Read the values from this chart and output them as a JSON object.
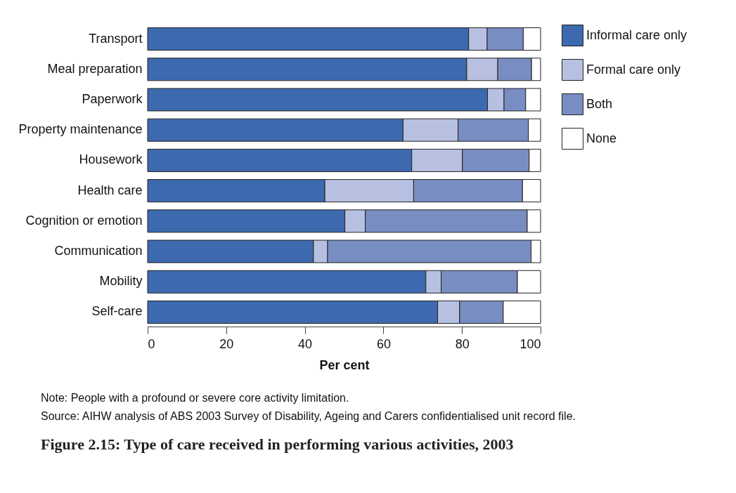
{
  "chart_data": {
    "type": "bar",
    "orientation": "horizontal",
    "stacked": true,
    "title": "Figure 2.15: Type of care received in performing various activities, 2003",
    "xlabel": "Per cent",
    "annotations": [
      "Note: People with a profound or severe core activity limitation.",
      "Source: AIHW analysis of ABS 2003 Survey of Disability, Ageing and Carers confidentialised unit record file."
    ],
    "categories": [
      "Transport",
      "Meal preparation",
      "Paperwork",
      "Property maintenance",
      "Housework",
      "Health care",
      "Cognition or emotion",
      "Communication",
      "Mobility",
      "Self-care"
    ],
    "series": [
      {
        "name": "Informal care only",
        "color": "#3d6aae",
        "values": [
          81.7,
          81.2,
          86.5,
          65.0,
          67.2,
          45.1,
          50.2,
          42.2,
          70.8,
          73.8
        ]
      },
      {
        "name": "Formal care only",
        "color": "#b7c0e0",
        "values": [
          4.7,
          7.9,
          4.2,
          14.0,
          12.9,
          22.6,
          5.2,
          3.6,
          3.9,
          5.6
        ]
      },
      {
        "name": "Both",
        "color": "#788dc2",
        "values": [
          9.2,
          8.6,
          5.5,
          17.9,
          17.0,
          27.7,
          41.2,
          51.8,
          19.4,
          11.1
        ]
      },
      {
        "name": "None",
        "color": "#ffffff",
        "values": [
          4.4,
          2.3,
          3.8,
          3.1,
          2.9,
          4.6,
          3.4,
          2.4,
          5.9,
          9.5
        ]
      }
    ],
    "xlim": [
      0,
      100
    ],
    "xticks": [
      0,
      20,
      40,
      60,
      80,
      100
    ],
    "grid": false,
    "legend": "top right"
  }
}
